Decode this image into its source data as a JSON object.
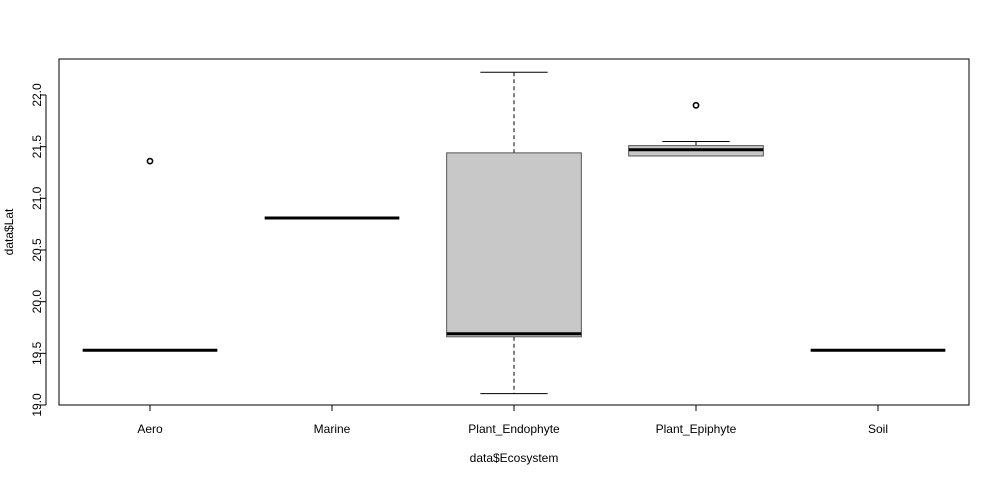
{
  "chart_data": {
    "type": "boxplot",
    "title": "",
    "xlabel": "data$Ecosystem",
    "ylabel": "data$Lat",
    "ylim": [
      19.0,
      22.2
    ],
    "yticks": [
      "19.0",
      "19.5",
      "20.0",
      "20.5",
      "21.0",
      "21.5",
      "22.0"
    ],
    "categories": [
      "Aero",
      "Marine",
      "Plant_Endophyte",
      "Plant_Epiphyte",
      "Soil"
    ],
    "box_fill": "#c8c8c8",
    "box_stroke": "#555555",
    "boxes": [
      {
        "category": "Aero",
        "lower_whisker": 19.53,
        "q1": 19.53,
        "median": 19.53,
        "q3": 19.53,
        "upper_whisker": 19.53,
        "outliers": [
          21.36
        ]
      },
      {
        "category": "Marine",
        "lower_whisker": 20.81,
        "q1": 20.81,
        "median": 20.81,
        "q3": 20.81,
        "upper_whisker": 20.81,
        "outliers": []
      },
      {
        "category": "Plant_Endophyte",
        "lower_whisker": 19.11,
        "q1": 19.66,
        "median": 19.69,
        "q3": 21.44,
        "upper_whisker": 22.22,
        "outliers": []
      },
      {
        "category": "Plant_Epiphyte",
        "lower_whisker": 21.41,
        "q1": 21.41,
        "median": 21.47,
        "q3": 21.51,
        "upper_whisker": 21.55,
        "outliers": [
          21.9
        ]
      },
      {
        "category": "Soil",
        "lower_whisker": 19.53,
        "q1": 19.53,
        "median": 19.53,
        "q3": 19.53,
        "upper_whisker": 19.53,
        "outliers": []
      }
    ]
  }
}
